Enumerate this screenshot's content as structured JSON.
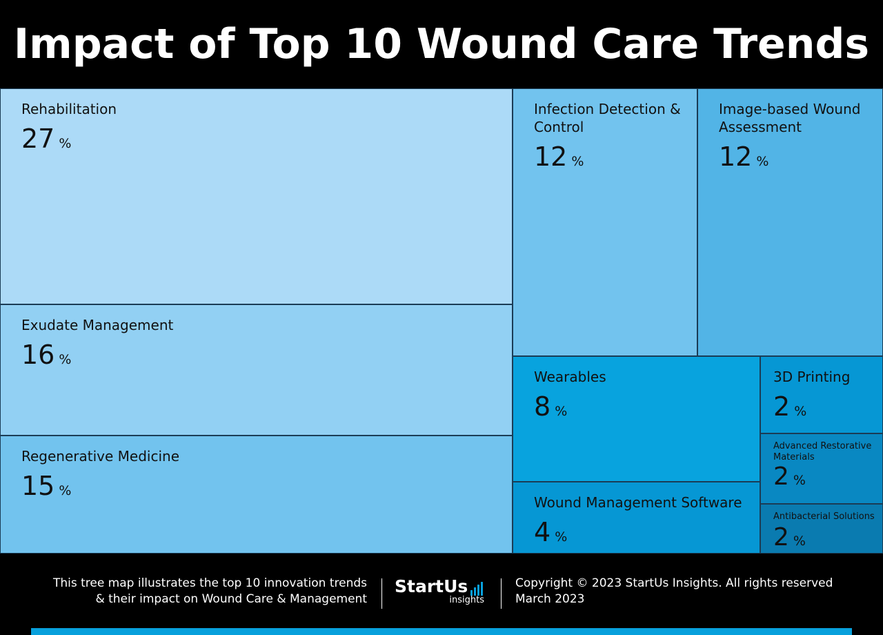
{
  "title": "Impact of Top 10 Wound Care Trends",
  "chart_data": {
    "type": "treemap",
    "title": "Impact of Top 10 Wound Care Trends",
    "unit": "%",
    "items": [
      {
        "label": "Rehabilitation",
        "value": 27,
        "color": "#acdaf7"
      },
      {
        "label": "Exudate Management",
        "value": 16,
        "color": "#92d0f3"
      },
      {
        "label": "Regenerative Medicine",
        "value": 15,
        "color": "#72c3ee"
      },
      {
        "label": "Infection Detection & Control",
        "value": 12,
        "color": "#72c3ee"
      },
      {
        "label": "Image-based Wound Assessment",
        "value": 12,
        "color": "#52b4e6"
      },
      {
        "label": "Wearables",
        "value": 8,
        "color": "#08a3de"
      },
      {
        "label": "Wound Management Software",
        "value": 4,
        "color": "#0697d4"
      },
      {
        "label": "3D Printing",
        "value": 2,
        "color": "#0697d4"
      },
      {
        "label": "Advanced Restorative Materials",
        "value": 2,
        "color": "#0988c2"
      },
      {
        "label": "Antibacterial Solutions",
        "value": 2,
        "color": "#0a7bb0"
      }
    ]
  },
  "footer": {
    "description_line1": "This tree map illustrates the top 10 innovation trends",
    "description_line2": "& their impact on Wound Care & Management",
    "logo_main": "StartUs",
    "logo_sub": "insights",
    "copyright": "Copyright © 2023 StartUs Insights. All rights reserved",
    "date": "March 2023"
  },
  "colors": {
    "background": "#000000",
    "accent": "#08a0dc"
  }
}
